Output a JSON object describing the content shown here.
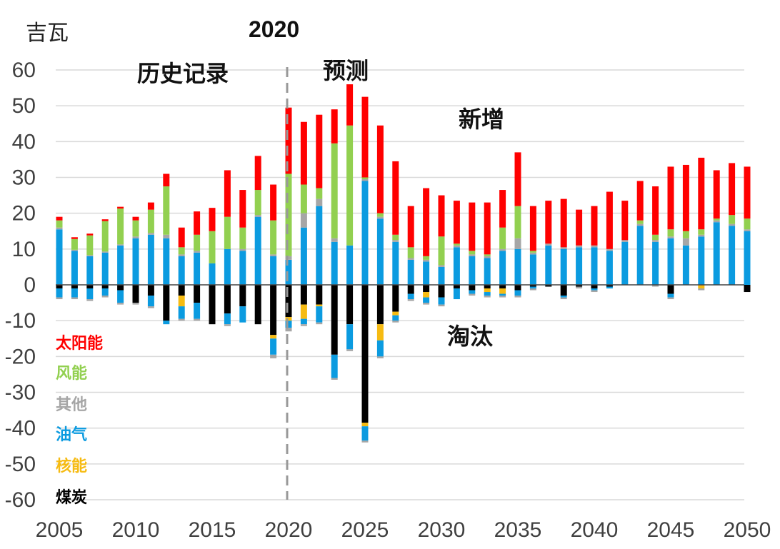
{
  "chart_data": {
    "type": "bar",
    "stacked": true,
    "unit_label": "吉瓦",
    "xlabel": "",
    "ylabel": "",
    "ylim": [
      -60,
      60
    ],
    "yticks": [
      60,
      50,
      40,
      30,
      20,
      10,
      0,
      -10,
      -20,
      -30,
      -40,
      -50,
      -60
    ],
    "xticks": [
      2005,
      2010,
      2015,
      2020,
      2025,
      2030,
      2035,
      2040,
      2045,
      2050
    ],
    "annotations": {
      "historical": "历史记录",
      "forecast": "预测",
      "divider_year": "2020",
      "additions": "新增",
      "retirements": "淘汰"
    },
    "legend": {
      "position": "bottom-left",
      "items": [
        {
          "key": "solar",
          "label": "太阳能",
          "color": "#ff0000"
        },
        {
          "key": "wind",
          "label": "风能",
          "color": "#92d050"
        },
        {
          "key": "other",
          "label": "其他",
          "color": "#a6a6a6"
        },
        {
          "key": "gas",
          "label": "油气",
          "color": "#0b9be0"
        },
        {
          "key": "nuclear",
          "label": "核能",
          "color": "#f6bb12"
        },
        {
          "key": "coal",
          "label": "煤炭",
          "color": "#000000"
        }
      ]
    },
    "years": [
      2005,
      2006,
      2007,
      2008,
      2009,
      2010,
      2011,
      2012,
      2013,
      2014,
      2015,
      2016,
      2017,
      2018,
      2019,
      2020,
      2021,
      2022,
      2023,
      2024,
      2025,
      2026,
      2027,
      2028,
      2029,
      2030,
      2031,
      2032,
      2033,
      2034,
      2035,
      2036,
      2037,
      2038,
      2039,
      2040,
      2041,
      2042,
      2043,
      2044,
      2045,
      2046,
      2047,
      2048,
      2049,
      2050
    ],
    "additions": {
      "gas": [
        15.5,
        9.5,
        8,
        9,
        11,
        13,
        14,
        13,
        8,
        9,
        6,
        10,
        9.5,
        19,
        8,
        7,
        16,
        22,
        12,
        11,
        29,
        18.5,
        12,
        7,
        6.5,
        5,
        10.5,
        8,
        7.5,
        9.5,
        10,
        8.5,
        11,
        10,
        10.5,
        10.5,
        9.5,
        12,
        16.5,
        12,
        13,
        11,
        13.5,
        17.5,
        16.5,
        15
      ],
      "other": [
        0.5,
        0.3,
        0.3,
        0.3,
        0.3,
        0.5,
        0.5,
        1,
        0.5,
        0.5,
        0,
        0,
        0.5,
        0.5,
        0.5,
        1,
        4,
        2,
        1,
        0,
        0.5,
        0.5,
        0.5,
        0.5,
        0.5,
        0.5,
        0.5,
        0.5,
        0.5,
        0.5,
        3,
        0.5,
        0.5,
        0.5,
        0.5,
        0.5,
        0.5,
        0.5,
        0.5,
        0.5,
        0.5,
        2,
        0.5,
        0.5,
        0.5,
        0.5
      ],
      "wind": [
        2,
        3,
        5.5,
        8.5,
        10,
        4.5,
        6.5,
        13.5,
        2,
        4.5,
        9,
        9,
        6,
        7,
        9.5,
        23,
        8,
        3,
        26.5,
        33.5,
        0.5,
        1,
        1.5,
        3,
        1,
        8,
        0.5,
        1,
        0.5,
        6,
        9,
        0.5,
        0,
        0,
        0,
        0,
        0,
        0,
        1,
        1.5,
        2,
        2,
        1.5,
        0.5,
        2.5,
        3
      ],
      "solar": [
        1,
        0.5,
        0.5,
        0.5,
        0.5,
        1,
        2,
        3.5,
        5.5,
        6.5,
        6.5,
        13,
        10.5,
        9.5,
        10,
        18.5,
        17.5,
        20.5,
        9.5,
        11.5,
        22.5,
        24.5,
        20.5,
        11.5,
        19,
        11.5,
        12,
        13.5,
        14.5,
        10.5,
        15,
        12.5,
        12,
        13.5,
        10,
        11,
        16,
        11,
        11,
        13.5,
        17.5,
        18.5,
        20,
        13.5,
        14.5,
        14.5
      ]
    },
    "retirements": {
      "coal": [
        -1,
        -1,
        -1,
        -1,
        -1.5,
        -5,
        -3,
        -10,
        -3,
        -5,
        -11,
        -8,
        -6,
        -11,
        -14,
        -9,
        -5.5,
        -5.5,
        -19.5,
        -11,
        -38.5,
        -11,
        -7.5,
        -2.5,
        -2,
        -3.5,
        -1,
        -1.5,
        -1,
        -1,
        -1.5,
        -0.5,
        -0.5,
        -3,
        -0.5,
        -1,
        -0.5,
        0,
        0,
        0,
        -2.5,
        0,
        0,
        0,
        0,
        -2
      ],
      "nuclear": [
        0,
        0,
        0,
        0,
        0,
        0,
        0,
        0,
        -3,
        0,
        0,
        0,
        0,
        0,
        -1,
        -1,
        -4,
        -0.5,
        0,
        0,
        -1,
        -4.5,
        -1,
        0,
        -1.5,
        0,
        0,
        0,
        -1,
        -1.5,
        0,
        0,
        0,
        0,
        0,
        0,
        0,
        0,
        0,
        0,
        0,
        0,
        -1,
        0,
        0,
        0
      ],
      "gas": [
        -2.5,
        -2.5,
        -3,
        -2,
        -3.5,
        0,
        -3,
        -1,
        -3.5,
        -4.5,
        0,
        -3,
        -4.5,
        0,
        -4.5,
        -2,
        -1.5,
        -4.5,
        -6.5,
        -7,
        -4,
        -4.5,
        -1.5,
        -1.5,
        -1.5,
        -2,
        -3,
        -1,
        -1,
        -0.5,
        -1.5,
        -0.5,
        0,
        -0.5,
        0,
        -0.5,
        -0.5,
        0,
        0,
        0,
        -1,
        0,
        0,
        0,
        0,
        0
      ],
      "other": [
        -0.5,
        -0.5,
        -0.5,
        -0.5,
        -0.5,
        -0.5,
        -0.5,
        0,
        -0.5,
        -0.5,
        0,
        -0.5,
        0,
        0,
        -1,
        -1,
        -0.5,
        -0.5,
        -0.5,
        -0.5,
        -0.5,
        -0.5,
        -0.5,
        -0.5,
        -0.5,
        -0.5,
        0,
        -0.5,
        -0.5,
        -0.5,
        -0.5,
        -0.5,
        0,
        -0.5,
        -0.5,
        -0.5,
        0,
        0,
        0,
        -0.5,
        -0.5,
        0,
        -0.5,
        0,
        0,
        0
      ]
    }
  }
}
